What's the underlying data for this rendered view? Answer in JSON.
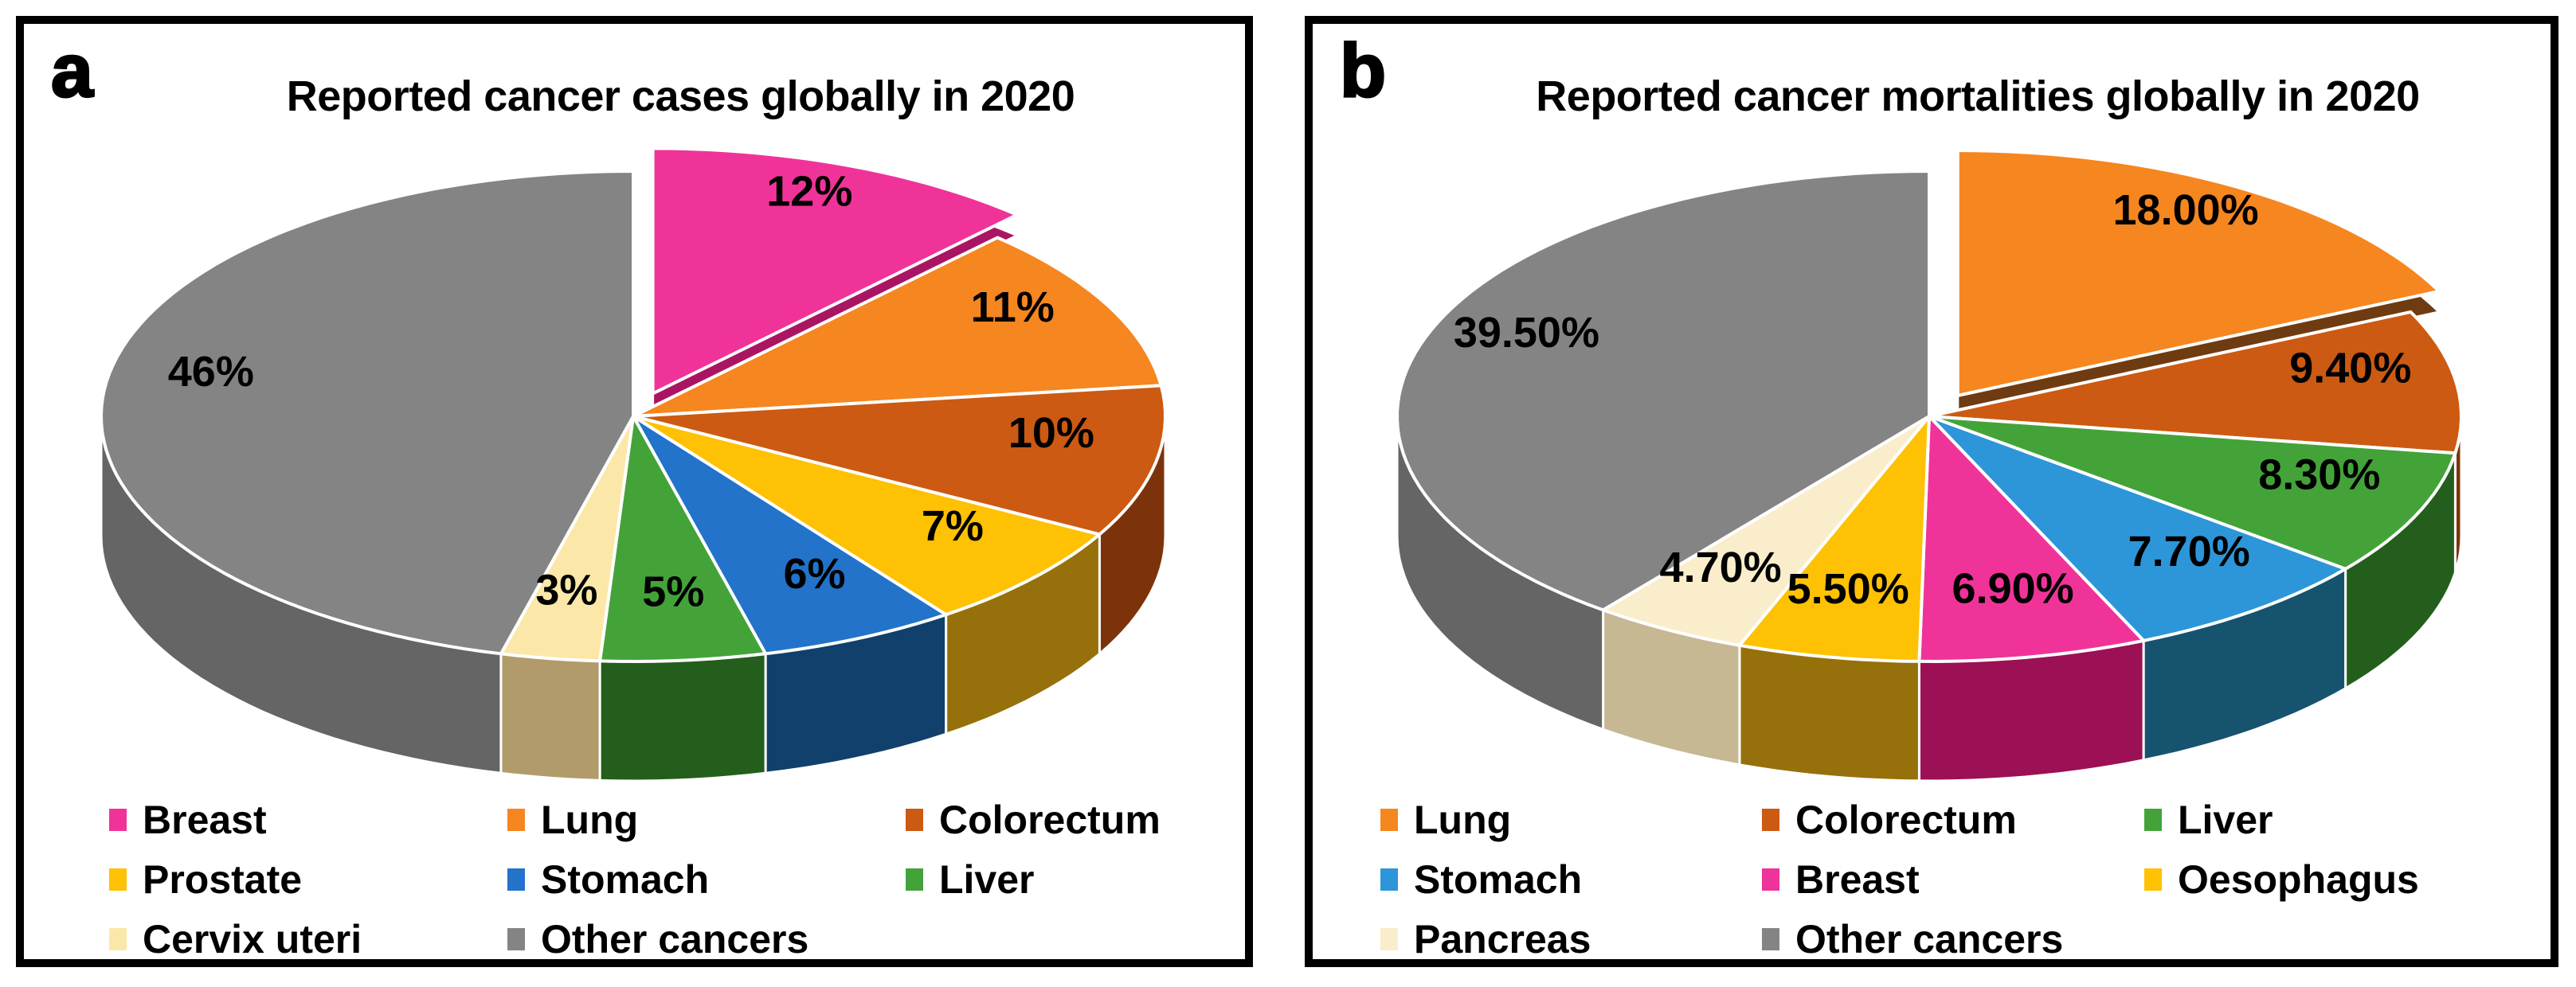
{
  "figure": {
    "background": "#FFFFFF",
    "panel_border_color": "#000000"
  },
  "chart_data": [
    {
      "type": "pie",
      "style": "3d-exploded",
      "panel_letter": "a",
      "title": "Reported cancer cases globally in 2020",
      "legend_position": "bottom",
      "legend_columns": 3,
      "slices": [
        {
          "label": "Breast",
          "value": 12,
          "display": "12%",
          "color": "#F03399",
          "side_color": "#AA1563",
          "exploded": true
        },
        {
          "label": "Lung",
          "value": 11,
          "display": "11%",
          "color": "#F6861F",
          "side_color": "#8C4A10",
          "exploded": false
        },
        {
          "label": "Colorectum",
          "value": 10,
          "display": "10%",
          "color": "#CC5A12",
          "side_color": "#7C330B",
          "exploded": false
        },
        {
          "label": "Prostate",
          "value": 7,
          "display": "7%",
          "color": "#FEC103",
          "side_color": "#96700A",
          "exploded": false
        },
        {
          "label": "Stomach",
          "value": 6,
          "display": "6%",
          "color": "#2273C9",
          "side_color": "#10406B",
          "exploded": false
        },
        {
          "label": "Liver",
          "value": 5,
          "display": "5%",
          "color": "#43A339",
          "side_color": "#245E1C",
          "exploded": false
        },
        {
          "label": "Cervix uteri",
          "value": 3,
          "display": "3%",
          "color": "#FBE8A9",
          "side_color": "#B19B6B",
          "exploded": false
        },
        {
          "label": "Other cancers",
          "value": 46,
          "display": "46%",
          "color": "#848484",
          "side_color": "#656565",
          "exploded": false
        }
      ]
    },
    {
      "type": "pie",
      "style": "3d-exploded",
      "panel_letter": "b",
      "title": "Reported cancer mortalities globally in 2020",
      "legend_position": "bottom",
      "legend_columns": 3,
      "slices": [
        {
          "label": "Lung",
          "value": 18,
          "display": "18.00%",
          "color": "#F6861F",
          "side_color": "#6F3B11",
          "exploded": true
        },
        {
          "label": "Colorectum",
          "value": 9.4,
          "display": "9.40%",
          "color": "#CC5A12",
          "side_color": "#7C330B",
          "exploded": false
        },
        {
          "label": "Liver",
          "value": 8.3,
          "display": "8.30%",
          "color": "#43A339",
          "side_color": "#245E1C",
          "exploded": false
        },
        {
          "label": "Stomach",
          "value": 7.7,
          "display": "7.70%",
          "color": "#2D96D9",
          "side_color": "#16536F",
          "exploded": false
        },
        {
          "label": "Breast",
          "value": 6.9,
          "display": "6.90%",
          "color": "#F03399",
          "side_color": "#9C1055",
          "exploded": false
        },
        {
          "label": "Oesophagus",
          "value": 5.5,
          "display": "5.50%",
          "color": "#FEC103",
          "side_color": "#96700A",
          "exploded": false
        },
        {
          "label": "Pancreas",
          "value": 4.7,
          "display": "4.70%",
          "color": "#FAEDCB",
          "side_color": "#C6B893",
          "exploded": false
        },
        {
          "label": "Other cancers",
          "value": 39.5,
          "display": "39.50%",
          "color": "#848484",
          "side_color": "#656565",
          "exploded": false
        }
      ]
    }
  ]
}
